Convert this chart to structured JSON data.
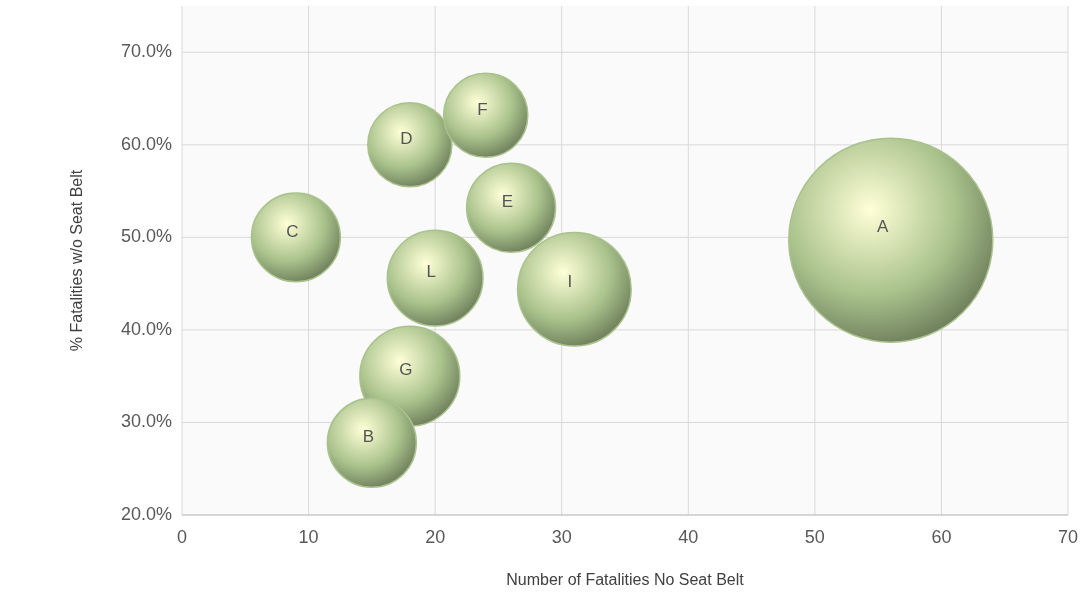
{
  "chart_data": {
    "type": "bubble",
    "xlabel": "Number of Fatalities No Seat Belt",
    "ylabel": "% Fatalities w/o Seat Belt",
    "xlim": [
      0,
      70
    ],
    "xticks": [
      0,
      10,
      20,
      30,
      40,
      50,
      60,
      70
    ],
    "ylim": [
      20,
      75
    ],
    "yticks": [
      {
        "value": 20,
        "label": "20.0%"
      },
      {
        "value": 30,
        "label": "30.0%"
      },
      {
        "value": 40,
        "label": "40.0%"
      },
      {
        "value": 50,
        "label": "50.0%"
      },
      {
        "value": 60,
        "label": "60.0%"
      },
      {
        "value": 70,
        "label": "70.0%"
      }
    ],
    "grid": true,
    "series": [
      {
        "name": "A",
        "color": "#a9c28c",
        "x": [
          56
        ],
        "values": [
          49.7
        ],
        "sizes": [
          1
        ]
      },
      {
        "name": "I",
        "color": "#a9c28c",
        "x": [
          31
        ],
        "values": [
          44.4
        ],
        "sizes": [
          0.31
        ]
      },
      {
        "name": "G",
        "color": "#a9c28c",
        "x": [
          18
        ],
        "values": [
          35
        ],
        "sizes": [
          0.24
        ]
      },
      {
        "name": "L",
        "color": "#a9c28c",
        "x": [
          20
        ],
        "values": [
          45.6
        ],
        "sizes": [
          0.22
        ]
      },
      {
        "name": "E",
        "color": "#a9c28c",
        "x": [
          26
        ],
        "values": [
          53.2
        ],
        "sizes": [
          0.19
        ]
      },
      {
        "name": "C",
        "color": "#a9c28c",
        "x": [
          9
        ],
        "values": [
          50
        ],
        "sizes": [
          0.19
        ]
      },
      {
        "name": "B",
        "color": "#a9c28c",
        "x": [
          15
        ],
        "values": [
          27.8
        ],
        "sizes": [
          0.19
        ]
      },
      {
        "name": "D",
        "color": "#a9c28c",
        "x": [
          18
        ],
        "values": [
          60
        ],
        "sizes": [
          0.17
        ]
      },
      {
        "name": "F",
        "color": "#a9c28c",
        "x": [
          24
        ],
        "values": [
          63.2
        ],
        "sizes": [
          0.17
        ]
      }
    ]
  }
}
